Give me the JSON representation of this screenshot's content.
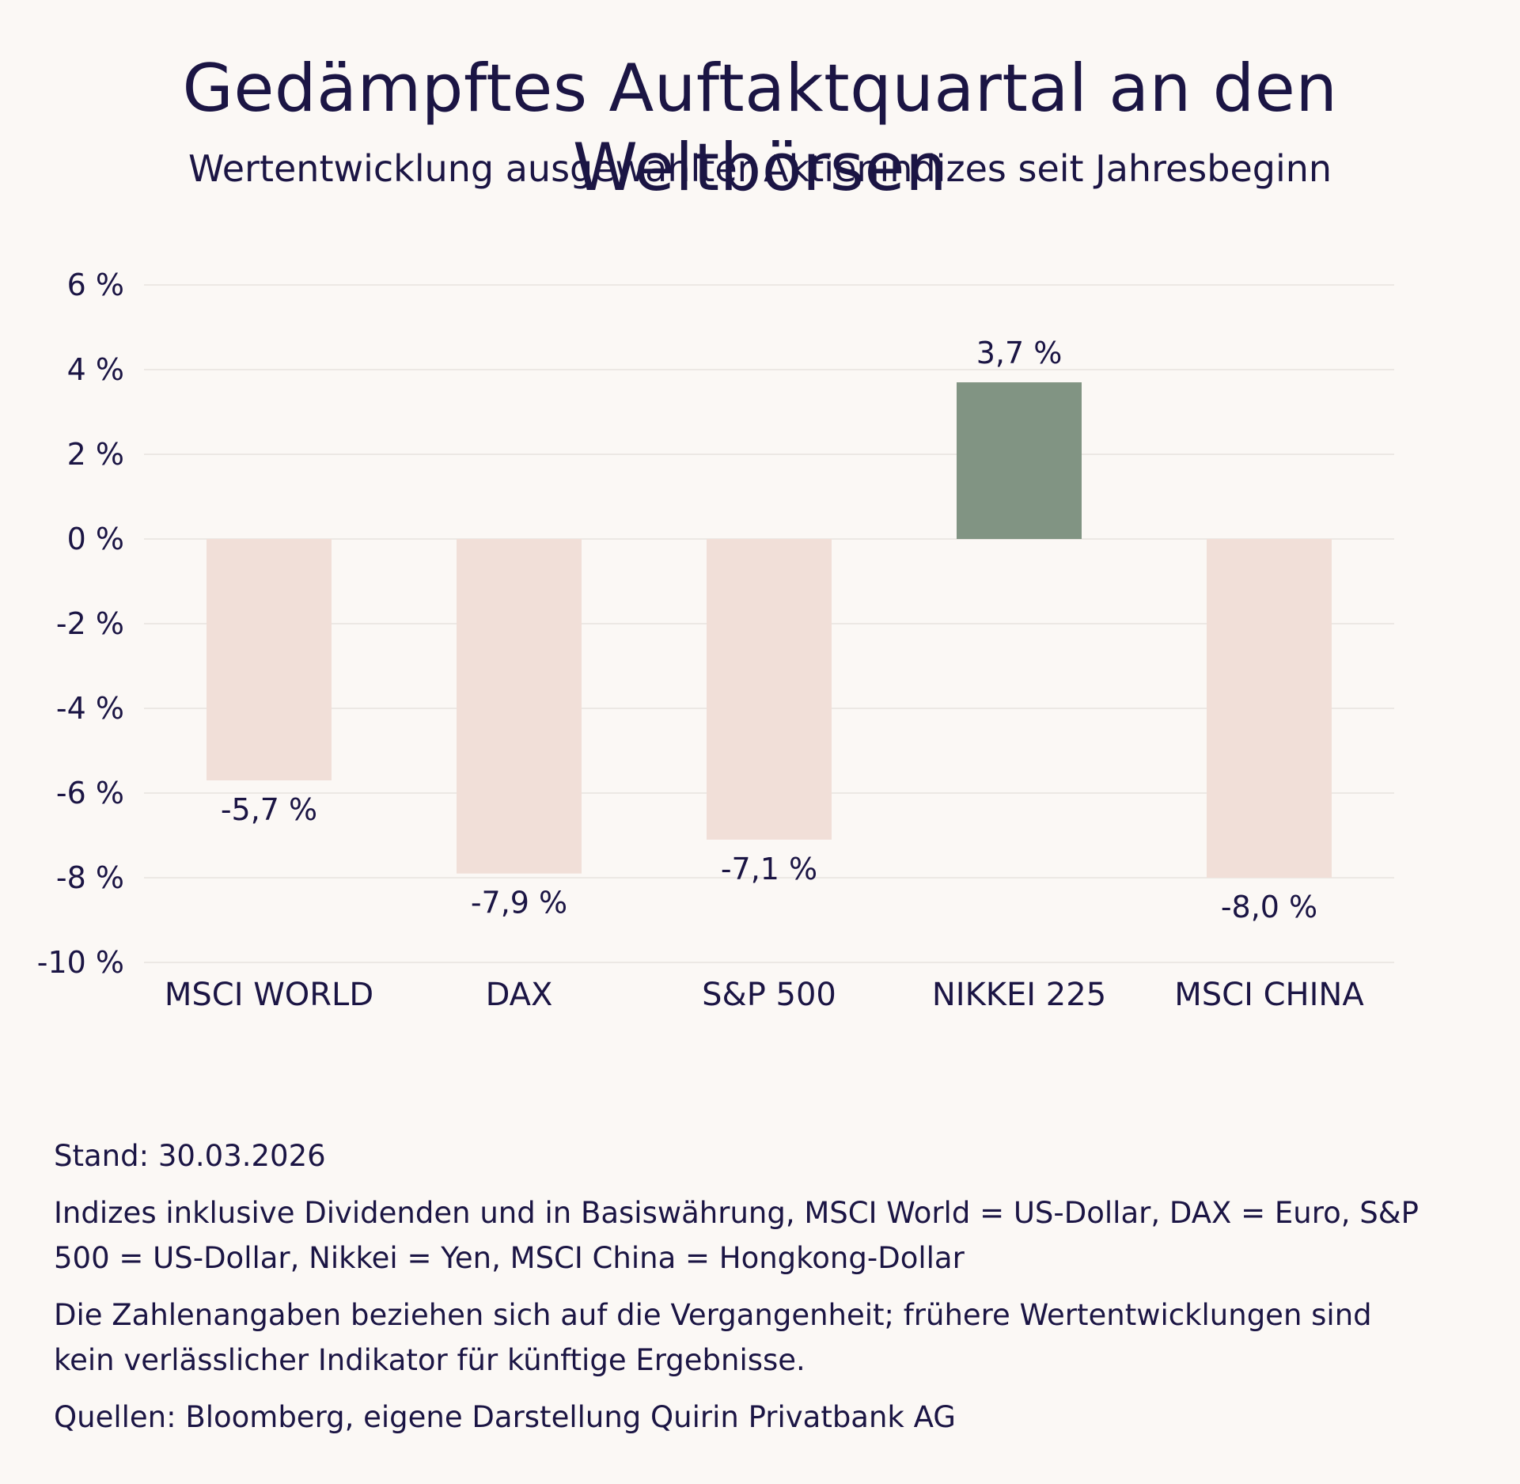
{
  "title": "Gedämpftes Auftaktquartal an den Weltbörsen",
  "subtitle": "Wertentwicklung ausgewählter Aktienindizes seit Jahresbeginn",
  "chart_data": {
    "type": "bar",
    "categories": [
      "MSCI WORLD",
      "DAX",
      "S&P 500",
      "NIKKEI 225",
      "MSCI CHINA"
    ],
    "values": [
      -5.7,
      -7.9,
      -7.1,
      3.7,
      -8.0
    ],
    "value_labels": [
      "-5,7 %",
      "-7,9 %",
      "-7,1 %",
      "3,7 %",
      "-8,0 %"
    ],
    "y_ticks": [
      6,
      4,
      2,
      0,
      -2,
      -4,
      -6,
      -8,
      -10
    ],
    "y_tick_labels": [
      "6 %",
      "4 %",
      "2 %",
      "0 %",
      "-2 %",
      "-4 %",
      "-6 %",
      "-8 %",
      "-10 %"
    ],
    "ylim": [
      -10,
      6
    ],
    "grid": true,
    "xlabel": "",
    "ylabel": "",
    "colors": {
      "positive": "#819483",
      "negative": "#f1dfd8",
      "grid": "#e8e3df",
      "text": "#1b1544"
    }
  },
  "footnotes": {
    "stand": "Stand: 30.03.2026",
    "indices": "Indizes inklusive Dividenden und in Basiswährung, MSCI World = US-Dollar, DAX = Euro, S&P 500 = US-Dollar, Nikkei = Yen, MSCI China = Hongkong-Dollar",
    "disclaimer": "Die Zahlenangaben beziehen sich auf die Vergangenheit; frühere Wertentwicklungen sind kein verlässlicher Indikator für künftige Ergebnisse.",
    "sources": "Quellen: Bloomberg, eigene Darstellung Quirin Privatbank AG"
  }
}
